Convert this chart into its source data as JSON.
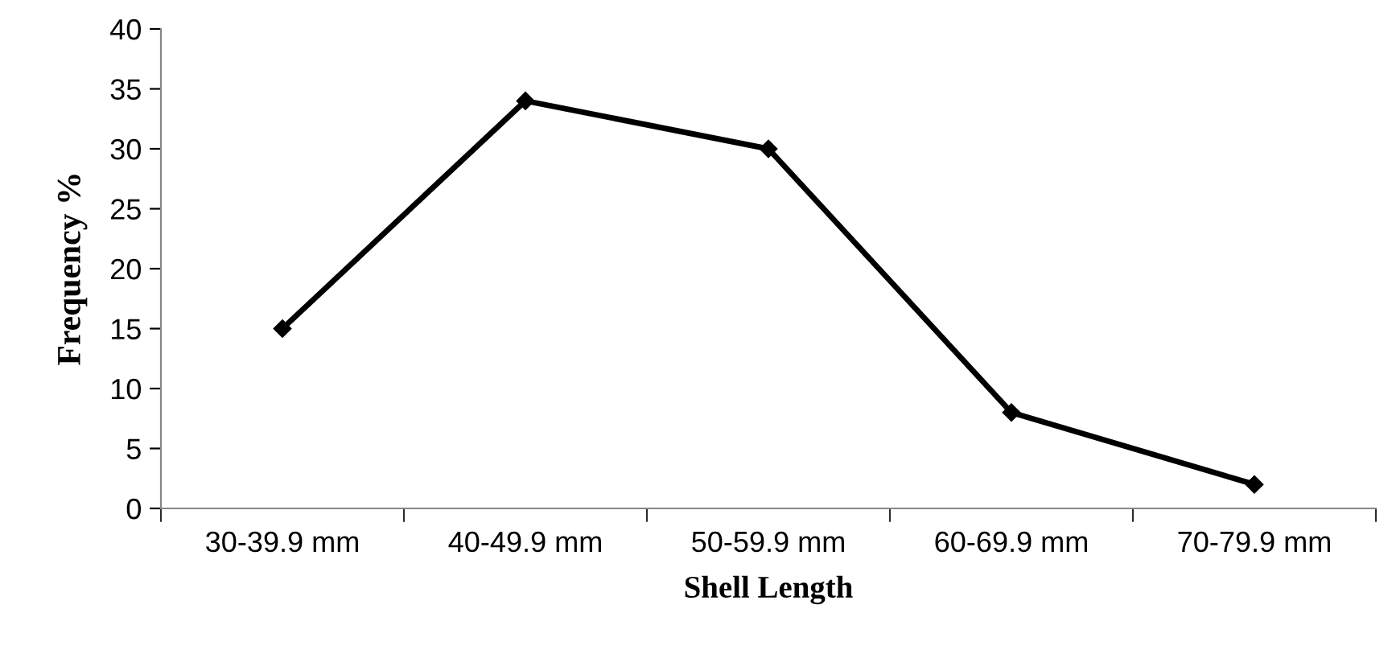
{
  "chart_data": {
    "type": "line",
    "xlabel": "Shell Length",
    "ylabel": "Frequency %",
    "categories": [
      "30-39.9 mm",
      "40-49.9 mm",
      "50-59.9 mm",
      "60-69.9 mm",
      "70-79.9 mm"
    ],
    "values": [
      15,
      34,
      30,
      8,
      2
    ],
    "color": "#000000",
    "marker": "diamond",
    "line_style": "solid",
    "ylim": [
      0,
      40
    ],
    "yticks": [
      0,
      5,
      10,
      15,
      20,
      25,
      30,
      35,
      40
    ],
    "grid": false,
    "legend": false
  }
}
